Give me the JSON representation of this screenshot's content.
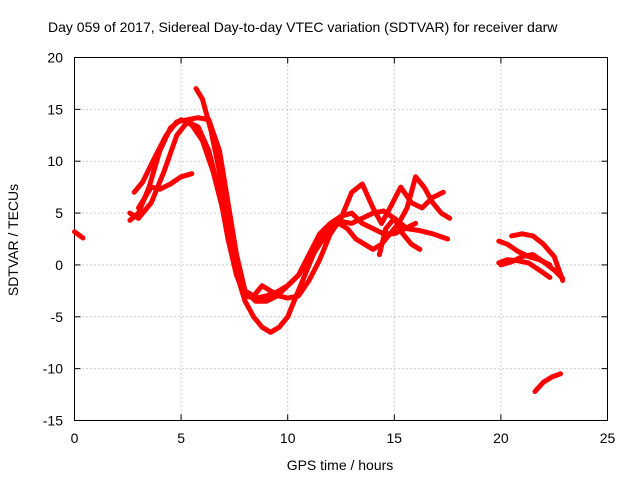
{
  "chart_data": {
    "type": "line",
    "title": "Day 059 of 2017, Sidereal Day-to-day VTEC variation (SDTVAR) for receiver darw",
    "xlabel": "GPS time / hours",
    "ylabel": "SDTVAR / TECUs",
    "xlim": [
      0,
      25
    ],
    "ylim": [
      -15,
      20
    ],
    "xticks": [
      0,
      5,
      10,
      15,
      20,
      25
    ],
    "yticks": [
      -15,
      -10,
      -5,
      0,
      5,
      10,
      15,
      20
    ],
    "xtick_labels": [
      "0",
      "5",
      "10",
      "15",
      "20",
      "25"
    ],
    "ytick_labels": [
      "-15",
      "-10",
      "-5",
      "0",
      "5",
      "10",
      "15",
      "20"
    ],
    "grid": true,
    "color": "#ff0000",
    "series": [
      {
        "name": "s1",
        "x": [
          0.0,
          0.2,
          0.4
        ],
        "y": [
          3.2,
          2.9,
          2.6
        ]
      },
      {
        "name": "s2",
        "x": [
          2.6,
          3.0,
          3.6,
          4.2,
          4.8,
          5.3,
          5.8,
          6.3,
          6.8,
          7.2,
          7.6,
          8.0,
          8.5,
          9.0,
          9.5,
          10.0,
          10.5,
          11.0,
          11.5,
          12.0,
          12.5,
          13.0,
          13.5,
          14.0,
          14.5,
          15.0,
          15.6,
          16.2,
          16.8,
          17.5
        ],
        "y": [
          5.0,
          4.5,
          6.0,
          9.0,
          12.5,
          13.8,
          13.3,
          11.0,
          7.0,
          2.5,
          -1.0,
          -3.0,
          -3.2,
          -3.0,
          -2.6,
          -2.0,
          -1.0,
          0.5,
          2.0,
          3.5,
          4.2,
          4.0,
          4.5,
          5.0,
          5.2,
          4.5,
          3.5,
          3.3,
          3.0,
          2.5
        ]
      },
      {
        "name": "s3",
        "x": [
          2.6,
          3.0,
          3.5,
          4.0,
          4.5,
          5.0,
          5.5,
          6.0,
          6.5,
          7.0,
          7.5,
          8.0,
          8.5,
          9.0,
          9.5,
          10.0,
          10.5,
          11.0,
          11.5,
          12.0,
          12.5,
          13.0,
          13.5,
          14.0,
          14.5,
          15.0,
          15.5,
          16.0
        ],
        "y": [
          4.3,
          5.0,
          7.5,
          11.0,
          13.2,
          14.0,
          13.5,
          12.0,
          9.0,
          5.0,
          0.5,
          -2.5,
          -3.5,
          -3.5,
          -3.0,
          -2.0,
          -1.0,
          1.0,
          3.0,
          4.0,
          4.7,
          5.0,
          4.0,
          3.5,
          3.0,
          3.0,
          3.5,
          4.0
        ]
      },
      {
        "name": "s4",
        "x": [
          2.8,
          3.2,
          3.8,
          4.3,
          4.8,
          5.3,
          5.8,
          6.3,
          6.8,
          7.2,
          7.6,
          8.0,
          8.4,
          8.8,
          9.2,
          9.6,
          10.0,
          10.5,
          11.0,
          11.5,
          12.0,
          12.5,
          13.0,
          13.5,
          14.0,
          14.4,
          14.8,
          15.3,
          15.8,
          16.3,
          16.8,
          17.3
        ],
        "y": [
          7.0,
          8.0,
          10.5,
          12.5,
          13.8,
          14.0,
          14.2,
          14.0,
          11.0,
          6.0,
          1.0,
          -2.5,
          -3.0,
          -2.0,
          -2.5,
          -3.0,
          -3.2,
          -3.0,
          -1.5,
          0.5,
          3.0,
          4.5,
          7.0,
          7.8,
          5.5,
          4.0,
          5.5,
          7.5,
          6.0,
          5.5,
          6.5,
          7.0
        ]
      },
      {
        "name": "s5",
        "x": [
          3.0,
          3.3,
          3.6,
          4.0,
          4.5,
          5.0,
          5.5
        ],
        "y": [
          5.5,
          6.5,
          7.5,
          7.3,
          7.8,
          8.5,
          8.8
        ]
      },
      {
        "name": "s6",
        "x": [
          5.7,
          6.0,
          6.4,
          6.9,
          7.3,
          7.7,
          8.0,
          8.4,
          8.8,
          9.2,
          9.6,
          10.0,
          10.4,
          10.8,
          11.2,
          11.6,
          12.0,
          12.4,
          12.8,
          13.2,
          13.6,
          14.0,
          14.4,
          14.8,
          15.2,
          15.6,
          16.0,
          16.4,
          16.8,
          17.2,
          17.6
        ],
        "y": [
          17.0,
          16.0,
          13.0,
          8.0,
          3.0,
          -1.5,
          -3.5,
          -5.0,
          -6.0,
          -6.5,
          -6.0,
          -5.0,
          -3.0,
          -1.0,
          1.0,
          2.5,
          3.5,
          4.0,
          3.5,
          2.5,
          2.0,
          1.5,
          2.0,
          3.0,
          4.0,
          5.5,
          8.5,
          7.5,
          6.0,
          5.0,
          4.5
        ]
      },
      {
        "name": "s7",
        "x": [
          14.3,
          14.6,
          15.0,
          15.4,
          15.8,
          16.2
        ],
        "y": [
          1.0,
          3.5,
          4.5,
          3.0,
          2.0,
          1.5
        ]
      },
      {
        "name": "s8",
        "x": [
          19.9,
          20.3,
          20.8,
          21.3,
          21.8,
          22.3
        ],
        "y": [
          2.3,
          2.0,
          1.3,
          0.8,
          0.5,
          0.0
        ]
      },
      {
        "name": "s9",
        "x": [
          19.9,
          20.3,
          20.8,
          21.3,
          21.8,
          22.3
        ],
        "y": [
          0.2,
          0.5,
          0.4,
          0.2,
          -0.5,
          -1.2
        ]
      },
      {
        "name": "s10",
        "x": [
          20.5,
          21.0,
          21.5,
          22.0,
          22.5,
          22.9
        ],
        "y": [
          2.8,
          3.0,
          2.8,
          2.0,
          0.8,
          -1.5
        ]
      },
      {
        "name": "s11",
        "x": [
          20.0,
          20.5,
          21.0,
          21.5,
          22.0,
          22.5,
          22.9
        ],
        "y": [
          0.0,
          0.3,
          0.8,
          1.0,
          0.3,
          -0.5,
          -1.3
        ]
      },
      {
        "name": "s12",
        "x": [
          21.6,
          22.0,
          22.4,
          22.8
        ],
        "y": [
          -12.2,
          -11.3,
          -10.8,
          -10.5
        ]
      }
    ]
  }
}
